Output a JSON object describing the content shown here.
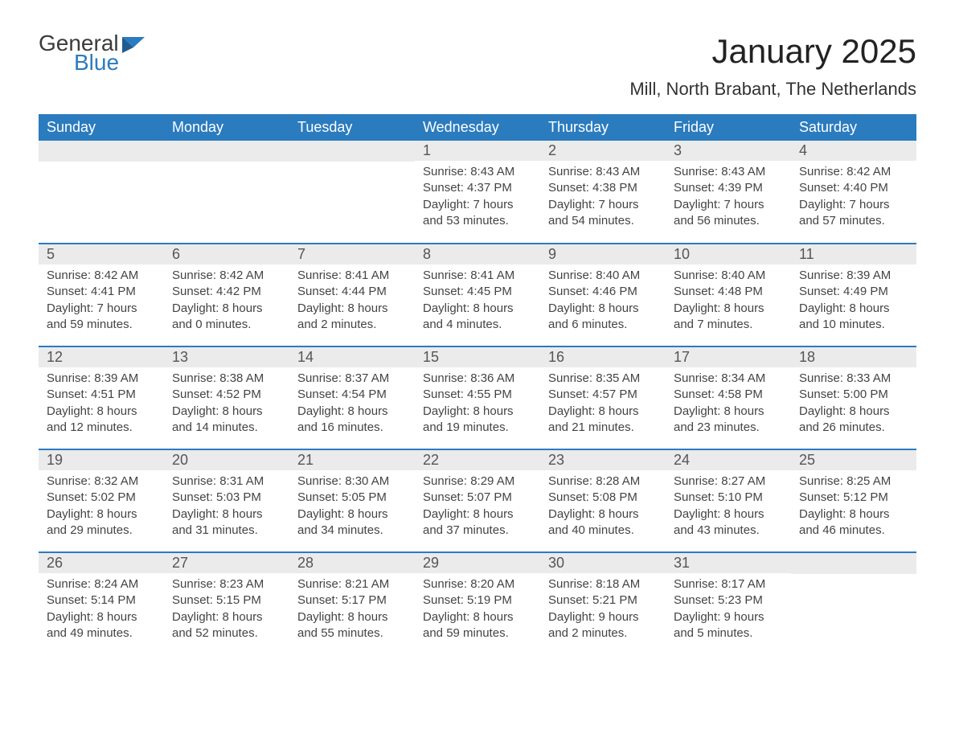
{
  "brand": {
    "general": "General",
    "blue": "Blue"
  },
  "title": "January 2025",
  "subtitle": "Mill, North Brabant, The Netherlands",
  "colors": {
    "header_bg": "#2b7bbf",
    "header_text": "#ffffff",
    "daynum_bg": "#ebebeb",
    "daynum_text": "#555555",
    "body_text": "#444444",
    "row_divider": "#2b7bbf",
    "page_bg": "#ffffff",
    "logo_general": "#3b3b3b",
    "logo_blue": "#2b7bbf"
  },
  "fontsize": {
    "title": 42,
    "subtitle": 22,
    "weekday": 18,
    "daynum": 18,
    "body": 15
  },
  "weekdays": [
    "Sunday",
    "Monday",
    "Tuesday",
    "Wednesday",
    "Thursday",
    "Friday",
    "Saturday"
  ],
  "weeks": [
    [
      null,
      null,
      null,
      {
        "n": "1",
        "sr": "Sunrise: 8:43 AM",
        "ss": "Sunset: 4:37 PM",
        "d1": "Daylight: 7 hours",
        "d2": "and 53 minutes."
      },
      {
        "n": "2",
        "sr": "Sunrise: 8:43 AM",
        "ss": "Sunset: 4:38 PM",
        "d1": "Daylight: 7 hours",
        "d2": "and 54 minutes."
      },
      {
        "n": "3",
        "sr": "Sunrise: 8:43 AM",
        "ss": "Sunset: 4:39 PM",
        "d1": "Daylight: 7 hours",
        "d2": "and 56 minutes."
      },
      {
        "n": "4",
        "sr": "Sunrise: 8:42 AM",
        "ss": "Sunset: 4:40 PM",
        "d1": "Daylight: 7 hours",
        "d2": "and 57 minutes."
      }
    ],
    [
      {
        "n": "5",
        "sr": "Sunrise: 8:42 AM",
        "ss": "Sunset: 4:41 PM",
        "d1": "Daylight: 7 hours",
        "d2": "and 59 minutes."
      },
      {
        "n": "6",
        "sr": "Sunrise: 8:42 AM",
        "ss": "Sunset: 4:42 PM",
        "d1": "Daylight: 8 hours",
        "d2": "and 0 minutes."
      },
      {
        "n": "7",
        "sr": "Sunrise: 8:41 AM",
        "ss": "Sunset: 4:44 PM",
        "d1": "Daylight: 8 hours",
        "d2": "and 2 minutes."
      },
      {
        "n": "8",
        "sr": "Sunrise: 8:41 AM",
        "ss": "Sunset: 4:45 PM",
        "d1": "Daylight: 8 hours",
        "d2": "and 4 minutes."
      },
      {
        "n": "9",
        "sr": "Sunrise: 8:40 AM",
        "ss": "Sunset: 4:46 PM",
        "d1": "Daylight: 8 hours",
        "d2": "and 6 minutes."
      },
      {
        "n": "10",
        "sr": "Sunrise: 8:40 AM",
        "ss": "Sunset: 4:48 PM",
        "d1": "Daylight: 8 hours",
        "d2": "and 7 minutes."
      },
      {
        "n": "11",
        "sr": "Sunrise: 8:39 AM",
        "ss": "Sunset: 4:49 PM",
        "d1": "Daylight: 8 hours",
        "d2": "and 10 minutes."
      }
    ],
    [
      {
        "n": "12",
        "sr": "Sunrise: 8:39 AM",
        "ss": "Sunset: 4:51 PM",
        "d1": "Daylight: 8 hours",
        "d2": "and 12 minutes."
      },
      {
        "n": "13",
        "sr": "Sunrise: 8:38 AM",
        "ss": "Sunset: 4:52 PM",
        "d1": "Daylight: 8 hours",
        "d2": "and 14 minutes."
      },
      {
        "n": "14",
        "sr": "Sunrise: 8:37 AM",
        "ss": "Sunset: 4:54 PM",
        "d1": "Daylight: 8 hours",
        "d2": "and 16 minutes."
      },
      {
        "n": "15",
        "sr": "Sunrise: 8:36 AM",
        "ss": "Sunset: 4:55 PM",
        "d1": "Daylight: 8 hours",
        "d2": "and 19 minutes."
      },
      {
        "n": "16",
        "sr": "Sunrise: 8:35 AM",
        "ss": "Sunset: 4:57 PM",
        "d1": "Daylight: 8 hours",
        "d2": "and 21 minutes."
      },
      {
        "n": "17",
        "sr": "Sunrise: 8:34 AM",
        "ss": "Sunset: 4:58 PM",
        "d1": "Daylight: 8 hours",
        "d2": "and 23 minutes."
      },
      {
        "n": "18",
        "sr": "Sunrise: 8:33 AM",
        "ss": "Sunset: 5:00 PM",
        "d1": "Daylight: 8 hours",
        "d2": "and 26 minutes."
      }
    ],
    [
      {
        "n": "19",
        "sr": "Sunrise: 8:32 AM",
        "ss": "Sunset: 5:02 PM",
        "d1": "Daylight: 8 hours",
        "d2": "and 29 minutes."
      },
      {
        "n": "20",
        "sr": "Sunrise: 8:31 AM",
        "ss": "Sunset: 5:03 PM",
        "d1": "Daylight: 8 hours",
        "d2": "and 31 minutes."
      },
      {
        "n": "21",
        "sr": "Sunrise: 8:30 AM",
        "ss": "Sunset: 5:05 PM",
        "d1": "Daylight: 8 hours",
        "d2": "and 34 minutes."
      },
      {
        "n": "22",
        "sr": "Sunrise: 8:29 AM",
        "ss": "Sunset: 5:07 PM",
        "d1": "Daylight: 8 hours",
        "d2": "and 37 minutes."
      },
      {
        "n": "23",
        "sr": "Sunrise: 8:28 AM",
        "ss": "Sunset: 5:08 PM",
        "d1": "Daylight: 8 hours",
        "d2": "and 40 minutes."
      },
      {
        "n": "24",
        "sr": "Sunrise: 8:27 AM",
        "ss": "Sunset: 5:10 PM",
        "d1": "Daylight: 8 hours",
        "d2": "and 43 minutes."
      },
      {
        "n": "25",
        "sr": "Sunrise: 8:25 AM",
        "ss": "Sunset: 5:12 PM",
        "d1": "Daylight: 8 hours",
        "d2": "and 46 minutes."
      }
    ],
    [
      {
        "n": "26",
        "sr": "Sunrise: 8:24 AM",
        "ss": "Sunset: 5:14 PM",
        "d1": "Daylight: 8 hours",
        "d2": "and 49 minutes."
      },
      {
        "n": "27",
        "sr": "Sunrise: 8:23 AM",
        "ss": "Sunset: 5:15 PM",
        "d1": "Daylight: 8 hours",
        "d2": "and 52 minutes."
      },
      {
        "n": "28",
        "sr": "Sunrise: 8:21 AM",
        "ss": "Sunset: 5:17 PM",
        "d1": "Daylight: 8 hours",
        "d2": "and 55 minutes."
      },
      {
        "n": "29",
        "sr": "Sunrise: 8:20 AM",
        "ss": "Sunset: 5:19 PM",
        "d1": "Daylight: 8 hours",
        "d2": "and 59 minutes."
      },
      {
        "n": "30",
        "sr": "Sunrise: 8:18 AM",
        "ss": "Sunset: 5:21 PM",
        "d1": "Daylight: 9 hours",
        "d2": "and 2 minutes."
      },
      {
        "n": "31",
        "sr": "Sunrise: 8:17 AM",
        "ss": "Sunset: 5:23 PM",
        "d1": "Daylight: 9 hours",
        "d2": "and 5 minutes."
      },
      null
    ]
  ]
}
